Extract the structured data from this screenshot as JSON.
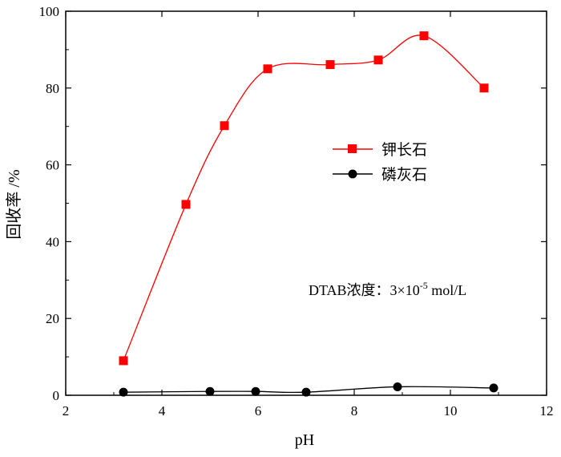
{
  "chart_data": {
    "type": "line",
    "xlabel": "pH",
    "ylabel": "回收率 /%",
    "xlim": [
      2,
      12
    ],
    "ylim": [
      0,
      100
    ],
    "x_ticks": [
      "2",
      "4",
      "6",
      "8",
      "10",
      "12"
    ],
    "y_ticks": [
      "0",
      "20",
      "40",
      "60",
      "80",
      "100"
    ],
    "grid": false,
    "legend_position": "right",
    "series": [
      {
        "name": "钾长石",
        "color": "#ff0000",
        "marker": "square",
        "x": [
          3.2,
          4.5,
          5.3,
          6.2,
          7.5,
          8.5,
          9.45,
          10.7
        ],
        "y": [
          9,
          49.7,
          70.2,
          85,
          86.1,
          87.3,
          93.6,
          80
        ]
      },
      {
        "name": "磷灰石",
        "color": "#000000",
        "marker": "circle",
        "x": [
          3.2,
          5.0,
          5.95,
          7.0,
          8.9,
          10.9
        ],
        "y": [
          0.8,
          1.0,
          1.0,
          0.8,
          2.2,
          1.9
        ]
      }
    ],
    "annotation": {
      "prefix": "DTAB浓度：3×10",
      "superscript": "-5",
      "suffix": " mol/L"
    }
  }
}
